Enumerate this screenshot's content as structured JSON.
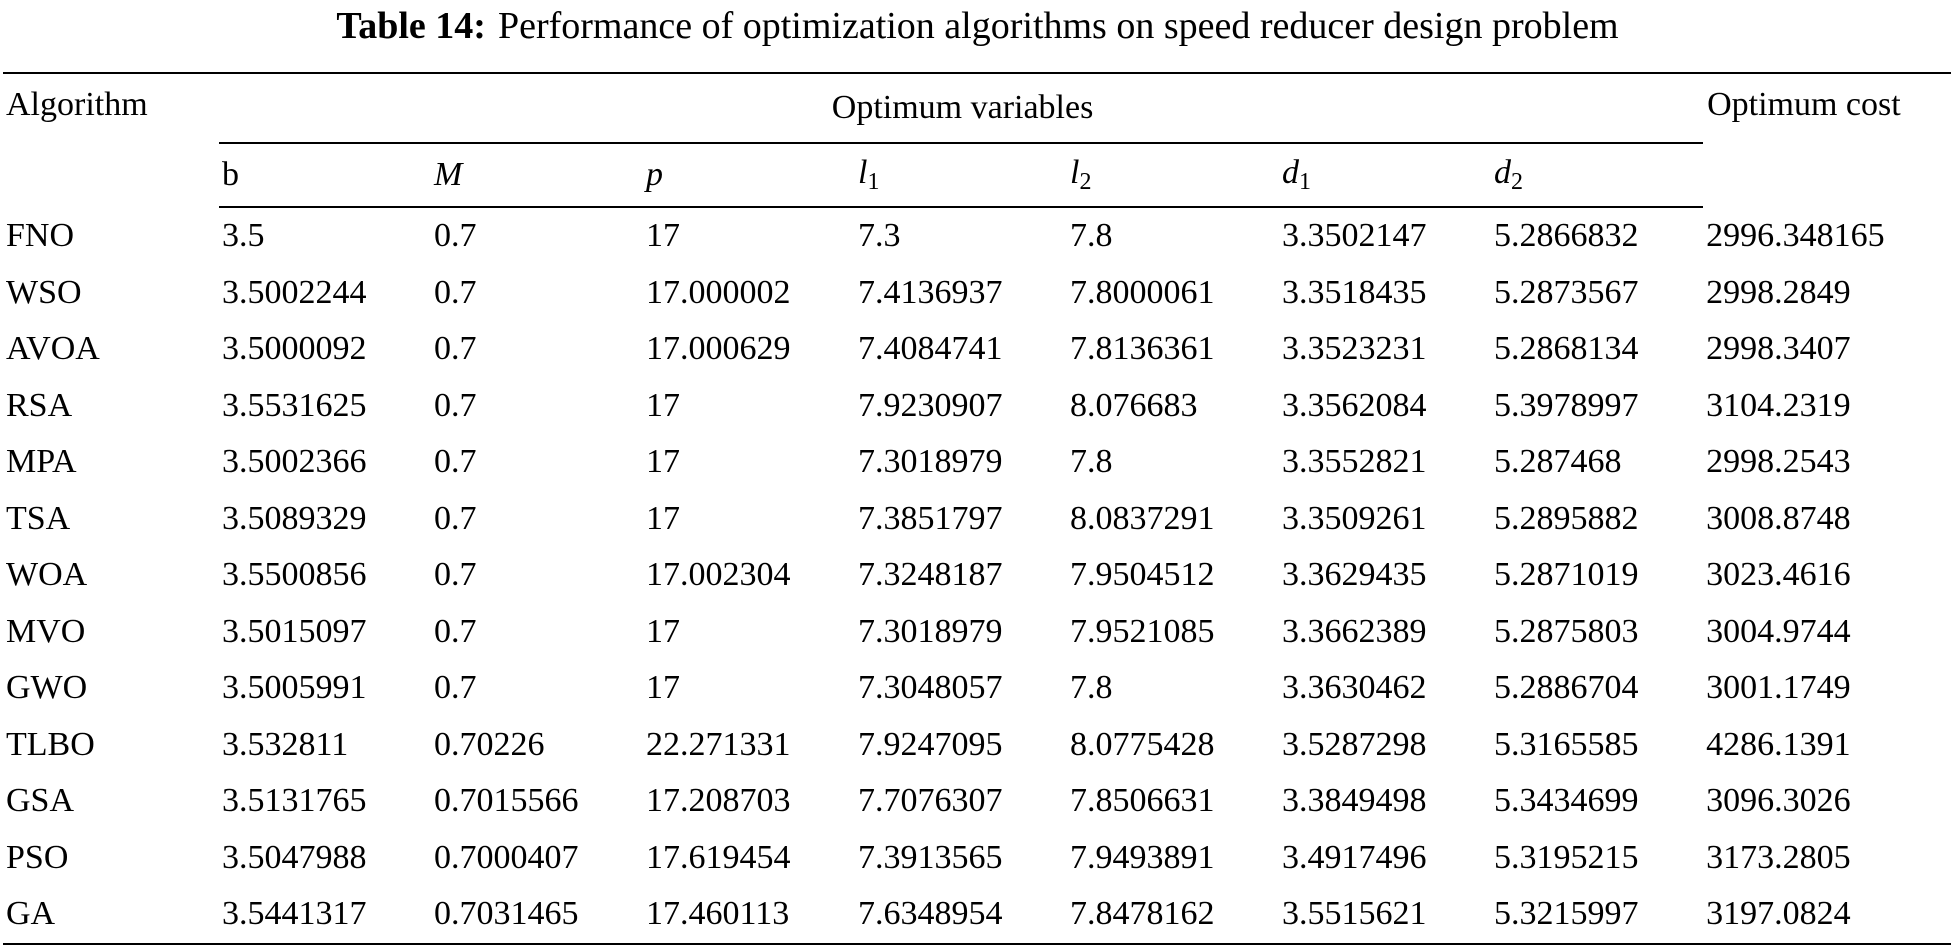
{
  "caption": {
    "label": "Table 14:",
    "text": "Performance of optimization algorithms on speed reducer design problem"
  },
  "header": {
    "algorithm": "Algorithm",
    "group": "Optimum variables",
    "cost": "Optimum cost",
    "variables": {
      "b": "b",
      "M": "M",
      "p": "p",
      "l1": {
        "base": "l",
        "sub": "1"
      },
      "l2": {
        "base": "l",
        "sub": "2"
      },
      "d1": {
        "base": "d",
        "sub": "1"
      },
      "d2": {
        "base": "d",
        "sub": "2"
      }
    }
  },
  "rows": [
    {
      "algorithm": "FNO",
      "values": [
        "3.5",
        "0.7",
        "17",
        "7.3",
        "7.8",
        "3.3502147",
        "5.2866832"
      ],
      "cost": "2996.348165"
    },
    {
      "algorithm": "WSO",
      "values": [
        "3.5002244",
        "0.7",
        "17.000002",
        "7.4136937",
        "7.8000061",
        "3.3518435",
        "5.2873567"
      ],
      "cost": "2998.2849"
    },
    {
      "algorithm": "AVOA",
      "values": [
        "3.5000092",
        "0.7",
        "17.000629",
        "7.4084741",
        "7.8136361",
        "3.3523231",
        "5.2868134"
      ],
      "cost": "2998.3407"
    },
    {
      "algorithm": "RSA",
      "values": [
        "3.5531625",
        "0.7",
        "17",
        "7.9230907",
        "8.076683",
        "3.3562084",
        "5.3978997"
      ],
      "cost": "3104.2319"
    },
    {
      "algorithm": "MPA",
      "values": [
        "3.5002366",
        "0.7",
        "17",
        "7.3018979",
        "7.8",
        "3.3552821",
        "5.287468"
      ],
      "cost": "2998.2543"
    },
    {
      "algorithm": "TSA",
      "values": [
        "3.5089329",
        "0.7",
        "17",
        "7.3851797",
        "8.0837291",
        "3.3509261",
        "5.2895882"
      ],
      "cost": "3008.8748"
    },
    {
      "algorithm": "WOA",
      "values": [
        "3.5500856",
        "0.7",
        "17.002304",
        "7.3248187",
        "7.9504512",
        "3.3629435",
        "5.2871019"
      ],
      "cost": "3023.4616"
    },
    {
      "algorithm": "MVO",
      "values": [
        "3.5015097",
        "0.7",
        "17",
        "7.3018979",
        "7.9521085",
        "3.3662389",
        "5.2875803"
      ],
      "cost": "3004.9744"
    },
    {
      "algorithm": "GWO",
      "values": [
        "3.5005991",
        "0.7",
        "17",
        "7.3048057",
        "7.8",
        "3.3630462",
        "5.2886704"
      ],
      "cost": "3001.1749"
    },
    {
      "algorithm": "TLBO",
      "values": [
        "3.532811",
        "0.70226",
        "22.271331",
        "7.9247095",
        "8.0775428",
        "3.5287298",
        "5.3165585"
      ],
      "cost": "4286.1391"
    },
    {
      "algorithm": "GSA",
      "values": [
        "3.5131765",
        "0.7015566",
        "17.208703",
        "7.7076307",
        "7.8506631",
        "3.3849498",
        "5.3434699"
      ],
      "cost": "3096.3026"
    },
    {
      "algorithm": "PSO",
      "values": [
        "3.5047988",
        "0.7000407",
        "17.619454",
        "7.3913565",
        "7.9493891",
        "3.4917496",
        "5.3195215"
      ],
      "cost": "3173.2805"
    },
    {
      "algorithm": "GA",
      "values": [
        "3.5441317",
        "0.7031465",
        "17.460113",
        "7.6348954",
        "7.8478162",
        "3.5515621",
        "5.3215997"
      ],
      "cost": "3197.0824"
    }
  ]
}
